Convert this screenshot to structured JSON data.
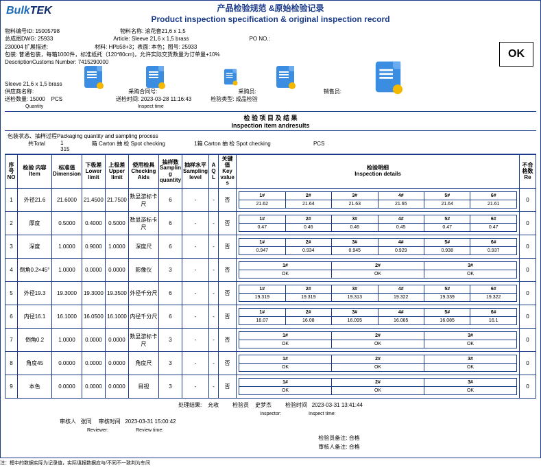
{
  "logo": {
    "part1": "Bulk",
    "part2": "TEK"
  },
  "title": {
    "cn": "产品检验规范 &原始检验记录",
    "en": "Product inspection specification & original inspection record"
  },
  "header": {
    "material_id_label": "物料编号ID:",
    "material_id": "15005798",
    "material_name_label": "物料名称:",
    "material_name": "滚花套21,6 x 1,5",
    "dwg_label": "总成图DWG:",
    "dwg": "25933",
    "article_label": "Article:",
    "article": "Sleeve 21,6 x 1,5 brass",
    "po_label": "PO NO.:",
    "expand_label": "230004 扩展描述:",
    "package_label": "包装:",
    "package": "普通包装，每箱1000件，标准纸托（120*80cm)，允许实际交货数量为订单量+10%",
    "material_spec_label": "材料:",
    "material_spec": "HPb58+3；表面: 本色；图号: 25933",
    "customs_label": "DescriptionCustoms Number:",
    "customs": "7415290000",
    "desc2": "Sleeve 21,6 x 1,5 brass",
    "supplier_label": "供应商名称:",
    "po_contract_label": "采购合同号:",
    "buyer_label": "采购员:",
    "sales_label": "销售员:",
    "delivery_qty_label": "送检数量:",
    "delivery_qty": "15000",
    "pcs": "PCS",
    "qty_en": "Quantity",
    "inspect_time_label": "送检时间:",
    "inspect_time": "2023-03-28 11:16:43",
    "inspect_time_en": "Inspect time",
    "inspect_type_label": "检验类型:",
    "inspect_type": "成品检验",
    "ok": "OK"
  },
  "section": {
    "cn": "检 验 项 目 及 结 果",
    "en": "Inspection item andresults"
  },
  "sampling": {
    "label": "包装状态、抽样过程Packaging quantity and sampling process",
    "total_label": "共Total",
    "total_lines": "1\n315",
    "carton1": "箱 Carton 抽 检 Spot checking",
    "carton2": "1箱 Carton 抽 检 Spot checking",
    "pcs": "PCS"
  },
  "cols": {
    "no": "序号\nNO",
    "item": "检验 内容\nItem",
    "dim": "标准值\nDimension",
    "lower": "下极差\nLower limit",
    "upper": "上极差\nUpper limit",
    "aids": "使用检具\nChecking Aids",
    "sqty": "抽样数\nSamplin g quantity",
    "slvl": "抽样水平\nSampling level",
    "aql": "A\nQ\nL",
    "key": "关键值\nKey value s",
    "detail": "检验明细\nInspection details",
    "re": "不合格数\nRe"
  },
  "rows": [
    {
      "no": "1",
      "item": "外径21.6",
      "dim": "21.6000",
      "low": "21.4500",
      "up": "21.7500",
      "aid": "数显游标卡尺",
      "sq": "6",
      "sl": "-",
      "aql": "-",
      "key": "否",
      "hdr": [
        "1#",
        "2#",
        "3#",
        "4#",
        "5#",
        "6#"
      ],
      "val": [
        "21.62",
        "21.64",
        "21.63",
        "21.65",
        "21.64",
        "21.61"
      ],
      "re": "0"
    },
    {
      "no": "2",
      "item": "厚度",
      "dim": "0.5000",
      "low": "0.4000",
      "up": "0.5000",
      "aid": "数显游标卡尺",
      "sq": "6",
      "sl": "-",
      "aql": "-",
      "key": "否",
      "hdr": [
        "1#",
        "2#",
        "3#",
        "4#",
        "5#",
        "6#"
      ],
      "val": [
        "0.47",
        "0.46",
        "0.46",
        "0.45",
        "0.47",
        "0.47"
      ],
      "re": "0"
    },
    {
      "no": "3",
      "item": "深度",
      "dim": "1.0000",
      "low": "0.9000",
      "up": "1.0000",
      "aid": "深度尺",
      "sq": "6",
      "sl": "-",
      "aql": "-",
      "key": "否",
      "hdr": [
        "1#",
        "2#",
        "3#",
        "4#",
        "5#",
        "6#"
      ],
      "val": [
        "0.947",
        "0.934",
        "0.945",
        "0.929",
        "0.938",
        "0.937"
      ],
      "re": "0"
    },
    {
      "no": "4",
      "item": "倒角0.2×45°",
      "dim": "1.0000",
      "low": "0.0000",
      "up": "0.0000",
      "aid": "影像仪",
      "sq": "3",
      "sl": "-",
      "aql": "-",
      "key": "否",
      "hdr": [
        "1#",
        "2#",
        "3#"
      ],
      "val": [
        "OK",
        "OK",
        "OK"
      ],
      "re": "0"
    },
    {
      "no": "5",
      "item": "外径19.3",
      "dim": "19.3000",
      "low": "19.3000",
      "up": "19.3500",
      "aid": "外径千分尺",
      "sq": "6",
      "sl": "-",
      "aql": "-",
      "key": "否",
      "hdr": [
        "1#",
        "2#",
        "3#",
        "4#",
        "5#",
        "6#"
      ],
      "val": [
        "19.319",
        "19.319",
        "19.313",
        "19.322",
        "19.339",
        "19.322"
      ],
      "re": "0"
    },
    {
      "no": "6",
      "item": "内径16.1",
      "dim": "16.1000",
      "low": "16.0500",
      "up": "16.1000",
      "aid": "内径千分尺",
      "sq": "6",
      "sl": "-",
      "aql": "-",
      "key": "否",
      "hdr": [
        "1#",
        "2#",
        "3#",
        "4#",
        "5#",
        "6#"
      ],
      "val": [
        "16.07",
        "16.08",
        "16.095",
        "16.085",
        "16.085",
        "16.1"
      ],
      "re": "0"
    },
    {
      "no": "7",
      "item": "倒角0.2",
      "dim": "1.0000",
      "low": "0.0000",
      "up": "0.0000",
      "aid": "数显游标卡尺",
      "sq": "3",
      "sl": "-",
      "aql": "-",
      "key": "否",
      "hdr": [
        "1#",
        "2#",
        "3#"
      ],
      "val": [
        "OK",
        "OK",
        "OK"
      ],
      "re": "0"
    },
    {
      "no": "8",
      "item": "角度45",
      "dim": "0.0000",
      "low": "0.0000",
      "up": "0.0000",
      "aid": "角度尺",
      "sq": "3",
      "sl": "-",
      "aql": "-",
      "key": "否",
      "hdr": [
        "1#",
        "2#",
        "3#"
      ],
      "val": [
        "OK",
        "OK",
        "OK"
      ],
      "re": "0"
    },
    {
      "no": "9",
      "item": "本色",
      "dim": "0.0000",
      "low": "0.0000",
      "up": "0.0000",
      "aid": "目视",
      "sq": "3",
      "sl": "-",
      "aql": "-",
      "key": "否",
      "hdr": [
        "1#",
        "2#",
        "3#"
      ],
      "val": [
        "OK",
        "OK",
        "OK"
      ],
      "re": "0"
    }
  ],
  "footer": {
    "result_label": "处理结果:",
    "result": "允收",
    "inspector_label": "检验员",
    "inspector": "史梦杰",
    "inspector_en": "Inspector:",
    "inspect_time_label": "检验时间",
    "inspect_time": "2023-03-31 13:41:44",
    "inspect_time_en": "Inspect time:",
    "reviewer_label": "审核人",
    "reviewer": "张同",
    "review_time_label": "审核时间",
    "review_time": "2023-03-31 15:00:42",
    "reviewer_en": "Reviewer:",
    "review_time_en": "Review time:",
    "insp_remark_label": "检验员备注:",
    "insp_remark": "合格",
    "rev_remark_label": "审核人备注:",
    "rev_remark": "合格"
  },
  "footnote": "注：框中的数据实际为记录值，实际填报数据应与/不同不一致判为车间"
}
